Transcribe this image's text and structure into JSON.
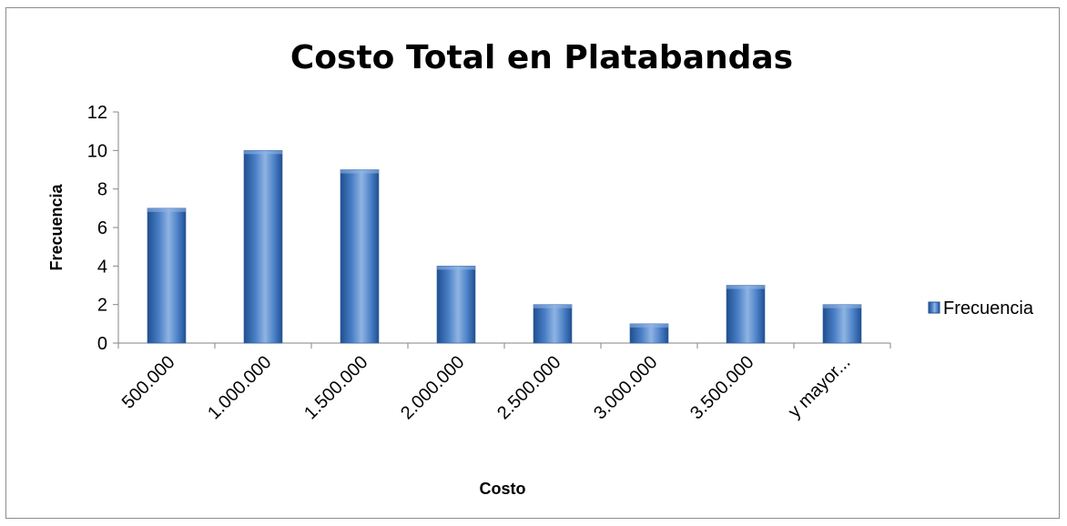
{
  "chart_data": {
    "type": "bar",
    "title": "Costo Total en Platabandas",
    "xlabel": "Costo",
    "ylabel": "Frecuencia",
    "categories": [
      "500.000",
      "1.000.000",
      "1.500.000",
      "2.000.000",
      "2.500.000",
      "3.000.000",
      "3.500.000",
      "y mayor..."
    ],
    "series": [
      {
        "name": "Frecuencia",
        "values": [
          7,
          10,
          9,
          4,
          2,
          1,
          3,
          2
        ]
      }
    ],
    "ylim": [
      0,
      12
    ],
    "yticks": [
      "0",
      "2",
      "4",
      "6",
      "8",
      "10",
      "12"
    ],
    "grid": false,
    "legend": "right",
    "colors": {
      "bar": "#4a7fc6",
      "bar_dark": "#1f4f91",
      "bar_light": "#8fb4e3"
    }
  }
}
